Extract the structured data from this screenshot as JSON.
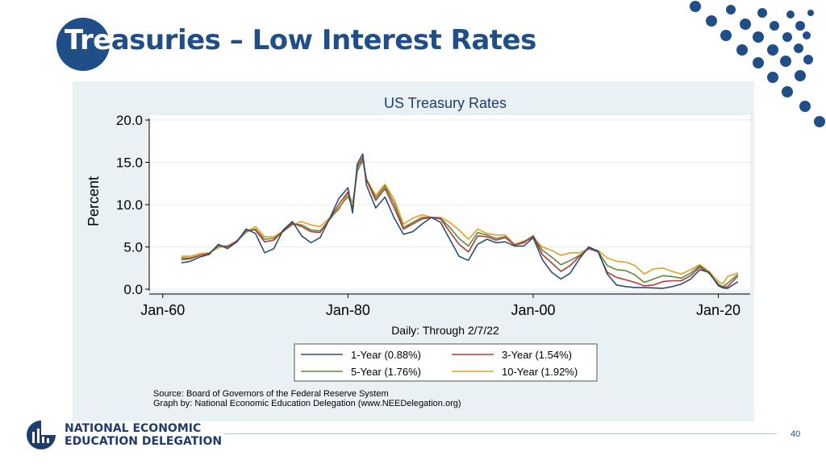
{
  "slide": {
    "title_first": "Tre",
    "title_rest": "asuries – Low Interest Rates",
    "page_number": "40",
    "logo": {
      "line1": "NATIONAL ECONOMIC",
      "line2": "EDUCATION DELEGATION"
    }
  },
  "colors": {
    "brand": "#1f4e89",
    "one_year": "#2c4f74",
    "three_year": "#b23a3a",
    "five_year": "#5f8a3c",
    "ten_year": "#e3a020"
  },
  "chart_data": {
    "type": "line",
    "title": "US Treasury Rates",
    "subtitle": "Daily: Through 2/7/22",
    "ylabel": "Percent",
    "xlabel": "",
    "ylim": [
      0,
      20
    ],
    "xlim": [
      1961,
      2022.1
    ],
    "yticks": [
      {
        "value": 0,
        "label": "0.0"
      },
      {
        "value": 5,
        "label": "5.0"
      },
      {
        "value": 10,
        "label": "10.0"
      },
      {
        "value": 15,
        "label": "15.0"
      },
      {
        "value": 20,
        "label": "20.0"
      }
    ],
    "xticks": [
      {
        "value": 1960,
        "label": "Jan-60"
      },
      {
        "value": 1980,
        "label": "Jan-80"
      },
      {
        "value": 2000,
        "label": "Jan-00"
      },
      {
        "value": 2020,
        "label": "Jan-20"
      }
    ],
    "grid": true,
    "legend_position": "bottom",
    "series": [
      {
        "name": "1-Year (0.88%)",
        "color": "#2c4f74",
        "x": [
          1962,
          1963,
          1964,
          1965,
          1966,
          1967,
          1968,
          1969,
          1970,
          1971,
          1972,
          1973,
          1974,
          1975,
          1976,
          1977,
          1978,
          1979,
          1980,
          1980.5,
          1981,
          1981.6,
          1982,
          1983,
          1984,
          1985,
          1986,
          1987,
          1988,
          1989,
          1990,
          1991,
          1992,
          1993,
          1994,
          1995,
          1996,
          1997,
          1998,
          1999,
          2000,
          2001,
          2002,
          2003,
          2004,
          2005,
          2006,
          2007,
          2008,
          2009,
          2010,
          2011,
          2012,
          2013,
          2014,
          2015,
          2016,
          2017,
          2018,
          2019,
          2020,
          2020.5,
          2021,
          2022.1
        ],
        "values": [
          3.1,
          3.3,
          3.8,
          4.1,
          5.3,
          4.8,
          5.6,
          7.1,
          6.6,
          4.3,
          4.8,
          7.0,
          8.0,
          6.3,
          5.5,
          6.1,
          8.3,
          10.7,
          12.0,
          9.0,
          14.8,
          16.0,
          12.3,
          9.6,
          10.9,
          8.4,
          6.5,
          6.8,
          7.7,
          8.5,
          7.9,
          5.9,
          3.9,
          3.4,
          5.3,
          5.9,
          5.5,
          5.6,
          5.1,
          5.1,
          6.1,
          3.5,
          2.0,
          1.2,
          1.9,
          3.6,
          5.0,
          4.5,
          1.8,
          0.5,
          0.3,
          0.2,
          0.2,
          0.15,
          0.1,
          0.3,
          0.6,
          1.2,
          2.3,
          2.0,
          0.4,
          0.15,
          0.1,
          0.88
        ]
      },
      {
        "name": "3-Year (1.54%)",
        "color": "#b23a3a",
        "x": [
          1962,
          1963,
          1964,
          1965,
          1966,
          1967,
          1968,
          1969,
          1970,
          1971,
          1972,
          1973,
          1974,
          1975,
          1976,
          1977,
          1978,
          1979,
          1980,
          1980.5,
          1981,
          1981.6,
          1982,
          1983,
          1984,
          1985,
          1986,
          1987,
          1988,
          1989,
          1990,
          1991,
          1992,
          1993,
          1994,
          1995,
          1996,
          1997,
          1998,
          1999,
          2000,
          2001,
          2002,
          2003,
          2004,
          2005,
          2006,
          2007,
          2008,
          2009,
          2010,
          2011,
          2012,
          2013,
          2014,
          2015,
          2016,
          2017,
          2018,
          2019,
          2020,
          2020.5,
          2021,
          2022.1
        ],
        "values": [
          3.5,
          3.6,
          4.0,
          4.2,
          5.2,
          5.0,
          5.7,
          7.0,
          7.0,
          5.6,
          5.8,
          6.9,
          7.8,
          7.4,
          6.8,
          6.7,
          8.3,
          10.0,
          11.5,
          9.4,
          14.4,
          15.6,
          12.9,
          10.5,
          11.9,
          9.6,
          7.1,
          7.7,
          8.3,
          8.5,
          8.3,
          6.8,
          5.3,
          4.4,
          6.3,
          6.2,
          5.8,
          6.1,
          5.2,
          5.5,
          6.3,
          4.1,
          3.1,
          2.1,
          2.8,
          3.9,
          4.8,
          4.4,
          2.0,
          1.4,
          1.1,
          0.8,
          0.4,
          0.5,
          0.9,
          1.0,
          1.0,
          1.6,
          2.6,
          1.9,
          0.5,
          0.2,
          0.3,
          1.54
        ]
      },
      {
        "name": "5-Year (1.76%)",
        "color": "#5f8a3c",
        "x": [
          1962,
          1963,
          1964,
          1965,
          1966,
          1967,
          1968,
          1969,
          1970,
          1971,
          1972,
          1973,
          1974,
          1975,
          1976,
          1977,
          1978,
          1979,
          1980,
          1980.5,
          1981,
          1981.6,
          1982,
          1983,
          1984,
          1985,
          1986,
          1987,
          1988,
          1989,
          1990,
          1991,
          1992,
          1993,
          1994,
          1995,
          1996,
          1997,
          1998,
          1999,
          2000,
          2001,
          2002,
          2003,
          2004,
          2005,
          2006,
          2007,
          2008,
          2009,
          2010,
          2011,
          2012,
          2013,
          2014,
          2015,
          2016,
          2017,
          2018,
          2019,
          2020,
          2020.5,
          2021,
          2022.1
        ],
        "values": [
          3.7,
          3.7,
          4.0,
          4.2,
          5.1,
          5.1,
          5.6,
          6.8,
          7.1,
          5.9,
          6.0,
          6.8,
          7.7,
          7.6,
          7.0,
          6.9,
          8.2,
          9.6,
          11.0,
          9.6,
          14.0,
          15.2,
          13.0,
          10.8,
          12.2,
          10.1,
          7.3,
          7.9,
          8.5,
          8.5,
          8.4,
          7.3,
          6.0,
          5.1,
          6.7,
          6.4,
          6.0,
          6.2,
          5.2,
          5.6,
          6.3,
          4.6,
          3.8,
          2.9,
          3.4,
          4.0,
          4.8,
          4.5,
          2.8,
          2.3,
          2.2,
          1.7,
          0.8,
          1.2,
          1.6,
          1.5,
          1.3,
          1.9,
          2.8,
          1.9,
          0.6,
          0.3,
          0.7,
          1.76
        ]
      },
      {
        "name": "10-Year (1.92%)",
        "color": "#e3a020",
        "x": [
          1962,
          1963,
          1964,
          1965,
          1966,
          1967,
          1968,
          1969,
          1970,
          1971,
          1972,
          1973,
          1974,
          1975,
          1976,
          1977,
          1978,
          1979,
          1980,
          1980.5,
          1981,
          1981.6,
          1982,
          1983,
          1984,
          1985,
          1986,
          1987,
          1988,
          1989,
          1990,
          1991,
          1992,
          1993,
          1994,
          1995,
          1996,
          1997,
          1998,
          1999,
          2000,
          2001,
          2002,
          2003,
          2004,
          2005,
          2006,
          2007,
          2008,
          2009,
          2010,
          2011,
          2012,
          2013,
          2014,
          2015,
          2016,
          2017,
          2018,
          2019,
          2020,
          2020.5,
          2021,
          2022.1
        ],
        "values": [
          3.9,
          3.9,
          4.2,
          4.3,
          4.9,
          5.1,
          5.7,
          6.7,
          7.4,
          6.2,
          6.2,
          6.9,
          7.6,
          8.0,
          7.6,
          7.4,
          8.4,
          9.4,
          11.4,
          10.2,
          13.9,
          15.3,
          13.0,
          11.1,
          12.4,
          10.6,
          7.7,
          8.4,
          8.8,
          8.5,
          8.5,
          7.9,
          7.0,
          5.9,
          7.1,
          6.6,
          6.4,
          6.4,
          5.3,
          5.7,
          6.0,
          5.0,
          4.6,
          4.0,
          4.3,
          4.3,
          4.8,
          4.6,
          3.7,
          3.3,
          3.2,
          2.8,
          1.8,
          2.4,
          2.5,
          2.1,
          1.8,
          2.3,
          2.9,
          2.1,
          0.9,
          0.65,
          1.5,
          1.92
        ]
      }
    ],
    "notes": [
      "Source: Board of Governors of the Federal Reserve System",
      "Graph by: National Economic Education Delegation (www.NEEDelegation.org)"
    ]
  }
}
